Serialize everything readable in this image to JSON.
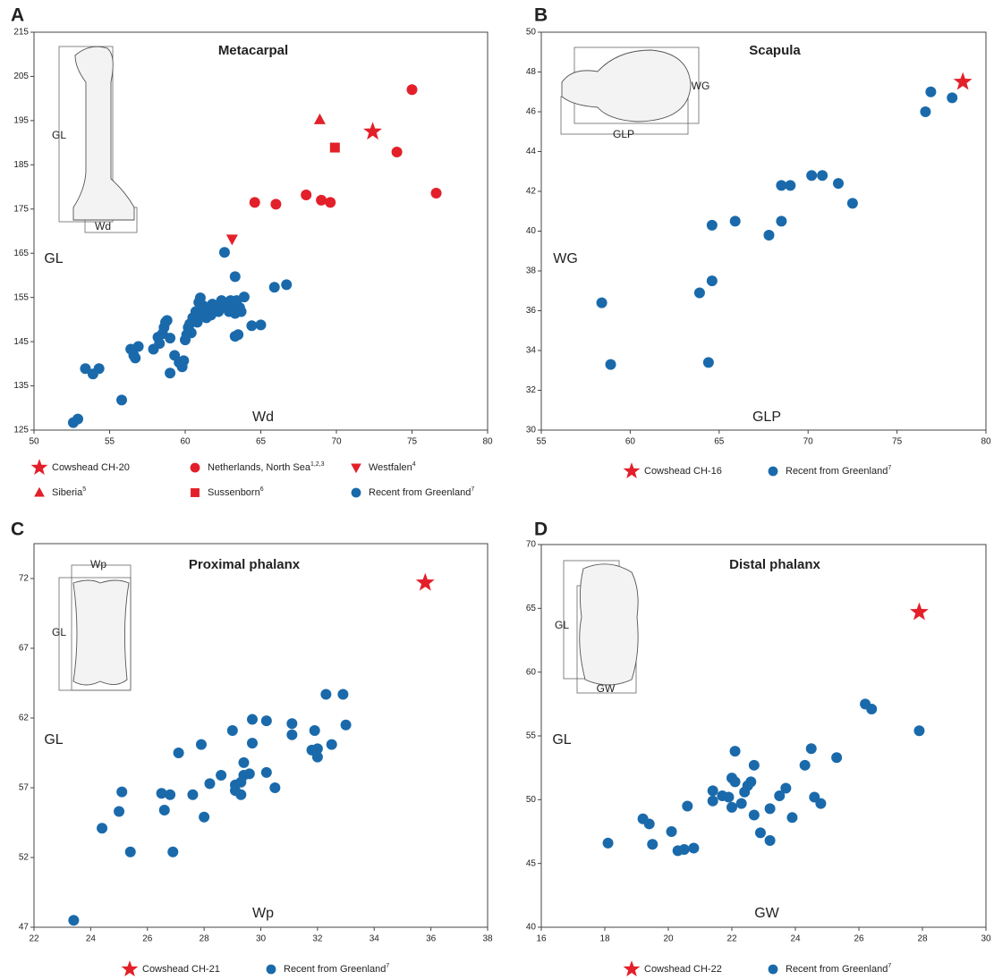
{
  "chart_data": [
    {
      "type": "scatter",
      "panel": "A",
      "title": "Metacarpal",
      "x_label": "Wd",
      "y_label": "GL",
      "inset_labels": [
        "GL",
        "Wd"
      ],
      "xlim": [
        50,
        80
      ],
      "ylim": [
        125,
        215
      ],
      "xticks": [
        50,
        55,
        60,
        65,
        70,
        75,
        80
      ],
      "yticks": [
        125,
        135,
        145,
        155,
        165,
        175,
        185,
        195,
        205,
        215
      ],
      "series": [
        {
          "name": "Cowshead CH-20",
          "color": "#e3202a",
          "marker": "star",
          "x": [
            72.4
          ],
          "values": [
            192.5
          ]
        },
        {
          "name": "Netherlands, North Sea",
          "ref": "1,2,3",
          "color": "#e3202a",
          "marker": "circle",
          "x": [
            75.0,
            74.0,
            76.6,
            64.6,
            66.0,
            68.0,
            69.0,
            69.6
          ],
          "values": [
            202.0,
            187.9,
            178.6,
            176.5,
            176.1,
            178.2,
            177.0,
            176.5
          ]
        },
        {
          "name": "Westfalen",
          "ref": "4",
          "color": "#e3202a",
          "marker": "triangle-down",
          "x": [
            63.1
          ],
          "values": [
            168.2
          ]
        },
        {
          "name": "Siberia",
          "ref": "5",
          "color": "#e3202a",
          "marker": "triangle",
          "x": [
            68.9
          ],
          "values": [
            195.2
          ]
        },
        {
          "name": "Sussenborn",
          "ref": "6",
          "color": "#e3202a",
          "marker": "square",
          "x": [
            69.9
          ],
          "values": [
            188.9
          ]
        },
        {
          "name": "Recent from Greenland",
          "ref": "7",
          "color": "#1a6aab",
          "marker": "circle",
          "x": [
            62.6,
            63.3,
            52.6,
            52.9,
            53.4,
            53.9,
            54.3,
            55.8,
            56.4,
            56.6,
            56.7,
            56.9,
            57.9,
            58.2,
            58.3,
            58.5,
            58.6,
            58.7,
            58.8,
            59.0,
            59.0,
            59.3,
            59.6,
            59.8,
            59.9,
            60.0,
            60.1,
            60.2,
            60.3,
            60.4,
            60.5,
            60.7,
            60.8,
            60.9,
            61.0,
            61.1,
            61.2,
            61.4,
            61.5,
            61.7,
            61.8,
            62.0,
            62.2,
            62.4,
            62.5,
            62.7,
            62.9,
            63.0,
            63.2,
            63.3,
            63.4,
            63.6,
            63.7,
            63.9,
            63.3,
            63.5,
            64.4,
            65.0,
            65.9,
            66.7
          ],
          "values": [
            165.2,
            159.7,
            126.7,
            127.5,
            138.9,
            137.7,
            138.9,
            131.8,
            143.3,
            141.9,
            141.3,
            143.9,
            143.3,
            146.0,
            144.6,
            146.8,
            148.2,
            149.4,
            149.8,
            145.8,
            137.9,
            141.9,
            140.3,
            139.3,
            140.7,
            145.4,
            146.6,
            148.2,
            149.0,
            147.0,
            150.4,
            151.8,
            149.4,
            153.9,
            154.9,
            151.4,
            153.1,
            150.4,
            151.8,
            151.0,
            153.5,
            152.5,
            151.8,
            154.3,
            153.5,
            152.7,
            151.8,
            154.3,
            153.5,
            151.4,
            154.3,
            152.7,
            151.8,
            155.1,
            146.2,
            146.6,
            148.6,
            148.8,
            157.3,
            157.9
          ]
        }
      ]
    },
    {
      "type": "scatter",
      "panel": "B",
      "title": "Scapula",
      "x_label": "GLP",
      "y_label": "WG",
      "inset_labels": [
        "WG",
        "GLP"
      ],
      "xlim": [
        55,
        80
      ],
      "ylim": [
        30,
        50
      ],
      "xticks": [
        55,
        60,
        65,
        70,
        75,
        80
      ],
      "yticks": [
        30,
        32,
        34,
        36,
        38,
        40,
        42,
        44,
        46,
        48,
        50
      ],
      "series": [
        {
          "name": "Cowshead CH-16",
          "color": "#e3202a",
          "marker": "star",
          "x": [
            78.7
          ],
          "values": [
            47.5
          ]
        },
        {
          "name": "Recent from Greenland",
          "ref": "7",
          "color": "#1a6aab",
          "marker": "circle",
          "x": [
            76.9,
            76.6,
            78.1,
            70.8,
            70.2,
            71.7,
            72.5,
            69.0,
            68.5,
            68.5,
            67.8,
            65.9,
            64.6,
            64.6,
            63.9,
            64.4,
            58.4,
            58.9
          ],
          "values": [
            47.0,
            46.0,
            46.7,
            42.8,
            42.8,
            42.4,
            41.4,
            42.3,
            42.3,
            40.5,
            39.8,
            40.5,
            40.3,
            37.5,
            36.9,
            33.4,
            36.4,
            33.3
          ]
        }
      ]
    },
    {
      "type": "scatter",
      "panel": "C",
      "title": "Proximal phalanx",
      "x_label": "Wp",
      "y_label": "GL",
      "inset_labels": [
        "Wp",
        "GL"
      ],
      "xlim": [
        22,
        38
      ],
      "ylim": [
        47,
        74.5
      ],
      "xticks": [
        22,
        24,
        26,
        28,
        30,
        32,
        34,
        36,
        38
      ],
      "yticks": [
        47,
        52,
        57,
        62,
        67,
        72
      ],
      "series": [
        {
          "name": "Cowshead CH-21",
          "color": "#e3202a",
          "marker": "star",
          "x": [
            35.8
          ],
          "values": [
            71.7
          ]
        },
        {
          "name": "Recent from Greenland",
          "ref": "7",
          "color": "#1a6aab",
          "marker": "circle",
          "x": [
            23.4,
            24.4,
            25.1,
            25.0,
            25.4,
            26.5,
            26.6,
            26.8,
            26.9,
            27.1,
            27.6,
            27.9,
            28.0,
            28.2,
            28.6,
            29.0,
            29.1,
            29.1,
            29.3,
            29.3,
            29.4,
            29.4,
            29.6,
            29.7,
            29.7,
            30.2,
            30.2,
            30.5,
            31.1,
            31.1,
            31.8,
            31.9,
            32.0,
            32.0,
            32.3,
            32.5,
            32.9,
            33.0
          ],
          "values": [
            47.5,
            54.1,
            56.7,
            55.3,
            52.4,
            56.6,
            55.4,
            56.5,
            52.4,
            59.5,
            56.5,
            60.1,
            54.9,
            57.3,
            57.9,
            61.1,
            57.2,
            56.8,
            57.4,
            56.5,
            57.9,
            58.8,
            58.0,
            60.2,
            61.9,
            61.8,
            58.1,
            57.0,
            61.6,
            60.8,
            59.7,
            61.1,
            59.2,
            59.8,
            63.7,
            60.1,
            63.7,
            61.5
          ]
        }
      ]
    },
    {
      "type": "scatter",
      "panel": "D",
      "title": "Distal phalanx",
      "x_label": "GW",
      "y_label": "GL",
      "inset_labels": [
        "GL",
        "GW"
      ],
      "xlim": [
        16,
        30
      ],
      "ylim": [
        40,
        70
      ],
      "xticks": [
        16,
        18,
        20,
        22,
        24,
        26,
        28,
        30
      ],
      "yticks": [
        40,
        45,
        50,
        55,
        60,
        65,
        70
      ],
      "series": [
        {
          "name": "Cowshead CH-22",
          "color": "#e3202a",
          "marker": "star",
          "x": [
            27.9
          ],
          "values": [
            64.7
          ]
        },
        {
          "name": "Recent from Greenland",
          "ref": "7",
          "color": "#1a6aab",
          "marker": "circle",
          "x": [
            18.1,
            19.2,
            19.4,
            19.5,
            20.1,
            20.3,
            20.5,
            20.8,
            20.6,
            21.4,
            21.4,
            21.7,
            21.9,
            22.0,
            22.1,
            22.0,
            22.1,
            22.3,
            22.4,
            22.5,
            22.6,
            22.7,
            22.7,
            22.9,
            23.2,
            23.5,
            23.7,
            23.9,
            24.3,
            24.5,
            24.6,
            24.8,
            25.3,
            26.2,
            26.4,
            27.9,
            23.2
          ],
          "values": [
            46.6,
            48.5,
            48.1,
            46.5,
            47.5,
            46.0,
            46.1,
            46.2,
            49.5,
            50.7,
            49.9,
            50.3,
            50.2,
            51.7,
            51.4,
            49.4,
            53.8,
            49.7,
            50.6,
            51.1,
            51.4,
            52.7,
            48.8,
            47.4,
            49.3,
            50.3,
            50.9,
            48.6,
            52.7,
            54.0,
            50.2,
            49.7,
            53.3,
            57.5,
            57.1,
            55.4,
            46.8
          ]
        }
      ]
    }
  ]
}
